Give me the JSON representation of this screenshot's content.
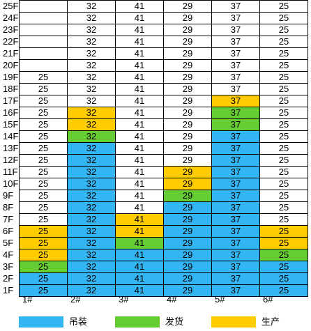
{
  "floors": [
    "25F",
    "24F",
    "23F",
    "22F",
    "21F",
    "20F",
    "19F",
    "18F",
    "17F",
    "16F",
    "15F",
    "14F",
    "13F",
    "12F",
    "11F",
    "10F",
    "9F",
    "8F",
    "7F",
    "6F",
    "5F",
    "4F",
    "3F",
    "2F",
    "1F"
  ],
  "columns": [
    "1#",
    "2#",
    "3#",
    "4#",
    "5#",
    "6#"
  ],
  "colors": {
    "lift": "#33b5f3",
    "ship": "#66cc33",
    "prod": "#ffcc00",
    "empty": "#ffffff"
  },
  "legend": [
    {
      "key": "lift",
      "label": "吊装",
      "color": "#33b5f3"
    },
    {
      "key": "ship",
      "label": "发货",
      "color": "#66cc33"
    },
    {
      "key": "prod",
      "label": "生产",
      "color": "#ffcc00"
    }
  ],
  "rows": [
    [
      [
        "",
        "n"
      ],
      [
        "32",
        "n"
      ],
      [
        "41",
        "n"
      ],
      [
        "29",
        "n"
      ],
      [
        "37",
        "n"
      ],
      [
        "25",
        "n"
      ]
    ],
    [
      [
        "",
        "n"
      ],
      [
        "32",
        "n"
      ],
      [
        "41",
        "n"
      ],
      [
        "29",
        "n"
      ],
      [
        "37",
        "n"
      ],
      [
        "25",
        "n"
      ]
    ],
    [
      [
        "",
        "n"
      ],
      [
        "32",
        "n"
      ],
      [
        "41",
        "n"
      ],
      [
        "29",
        "n"
      ],
      [
        "37",
        "n"
      ],
      [
        "25",
        "n"
      ]
    ],
    [
      [
        "",
        "n"
      ],
      [
        "32",
        "n"
      ],
      [
        "41",
        "n"
      ],
      [
        "29",
        "n"
      ],
      [
        "37",
        "n"
      ],
      [
        "25",
        "n"
      ]
    ],
    [
      [
        "",
        "n"
      ],
      [
        "32",
        "n"
      ],
      [
        "41",
        "n"
      ],
      [
        "29",
        "n"
      ],
      [
        "37",
        "n"
      ],
      [
        "25",
        "n"
      ]
    ],
    [
      [
        "",
        "n"
      ],
      [
        "32",
        "n"
      ],
      [
        "41",
        "n"
      ],
      [
        "29",
        "n"
      ],
      [
        "37",
        "n"
      ],
      [
        "25",
        "n"
      ]
    ],
    [
      [
        "25",
        "n"
      ],
      [
        "32",
        "n"
      ],
      [
        "41",
        "n"
      ],
      [
        "29",
        "n"
      ],
      [
        "37",
        "n"
      ],
      [
        "25",
        "n"
      ]
    ],
    [
      [
        "25",
        "n"
      ],
      [
        "32",
        "n"
      ],
      [
        "41",
        "n"
      ],
      [
        "29",
        "n"
      ],
      [
        "37",
        "n"
      ],
      [
        "25",
        "n"
      ]
    ],
    [
      [
        "25",
        "n"
      ],
      [
        "32",
        "n"
      ],
      [
        "41",
        "n"
      ],
      [
        "29",
        "n"
      ],
      [
        "37",
        "prod"
      ],
      [
        "25",
        "n"
      ]
    ],
    [
      [
        "25",
        "n"
      ],
      [
        "32",
        "prod"
      ],
      [
        "41",
        "n"
      ],
      [
        "29",
        "n"
      ],
      [
        "37",
        "ship"
      ],
      [
        "25",
        "n"
      ]
    ],
    [
      [
        "25",
        "n"
      ],
      [
        "32",
        "prod"
      ],
      [
        "41",
        "n"
      ],
      [
        "29",
        "n"
      ],
      [
        "37",
        "ship"
      ],
      [
        "25",
        "n"
      ]
    ],
    [
      [
        "25",
        "n"
      ],
      [
        "32",
        "ship"
      ],
      [
        "41",
        "n"
      ],
      [
        "29",
        "n"
      ],
      [
        "37",
        "lift"
      ],
      [
        "25",
        "n"
      ]
    ],
    [
      [
        "25",
        "n"
      ],
      [
        "32",
        "lift"
      ],
      [
        "41",
        "n"
      ],
      [
        "29",
        "n"
      ],
      [
        "37",
        "lift"
      ],
      [
        "25",
        "n"
      ]
    ],
    [
      [
        "25",
        "n"
      ],
      [
        "32",
        "lift"
      ],
      [
        "41",
        "n"
      ],
      [
        "29",
        "n"
      ],
      [
        "37",
        "lift"
      ],
      [
        "25",
        "n"
      ]
    ],
    [
      [
        "25",
        "n"
      ],
      [
        "32",
        "lift"
      ],
      [
        "41",
        "n"
      ],
      [
        "29",
        "prod"
      ],
      [
        "37",
        "lift"
      ],
      [
        "25",
        "n"
      ]
    ],
    [
      [
        "25",
        "n"
      ],
      [
        "32",
        "lift"
      ],
      [
        "41",
        "n"
      ],
      [
        "29",
        "prod"
      ],
      [
        "37",
        "lift"
      ],
      [
        "25",
        "n"
      ]
    ],
    [
      [
        "25",
        "n"
      ],
      [
        "32",
        "lift"
      ],
      [
        "41",
        "n"
      ],
      [
        "29",
        "ship"
      ],
      [
        "37",
        "lift"
      ],
      [
        "25",
        "n"
      ]
    ],
    [
      [
        "25",
        "n"
      ],
      [
        "32",
        "lift"
      ],
      [
        "41",
        "n"
      ],
      [
        "29",
        "lift"
      ],
      [
        "37",
        "lift"
      ],
      [
        "25",
        "n"
      ]
    ],
    [
      [
        "25",
        "n"
      ],
      [
        "32",
        "lift"
      ],
      [
        "41",
        "prod"
      ],
      [
        "29",
        "lift"
      ],
      [
        "37",
        "lift"
      ],
      [
        "25",
        "n"
      ]
    ],
    [
      [
        "25",
        "prod"
      ],
      [
        "32",
        "lift"
      ],
      [
        "41",
        "prod"
      ],
      [
        "29",
        "lift"
      ],
      [
        "37",
        "lift"
      ],
      [
        "25",
        "prod"
      ]
    ],
    [
      [
        "25",
        "prod"
      ],
      [
        "32",
        "lift"
      ],
      [
        "41",
        "ship"
      ],
      [
        "29",
        "lift"
      ],
      [
        "37",
        "lift"
      ],
      [
        "25",
        "prod"
      ]
    ],
    [
      [
        "25",
        "prod"
      ],
      [
        "32",
        "lift"
      ],
      [
        "41",
        "lift"
      ],
      [
        "29",
        "lift"
      ],
      [
        "37",
        "lift"
      ],
      [
        "25",
        "ship"
      ]
    ],
    [
      [
        "25",
        "ship"
      ],
      [
        "32",
        "lift"
      ],
      [
        "41",
        "lift"
      ],
      [
        "29",
        "lift"
      ],
      [
        "37",
        "lift"
      ],
      [
        "25",
        "lift"
      ]
    ],
    [
      [
        "25",
        "lift"
      ],
      [
        "32",
        "lift"
      ],
      [
        "41",
        "lift"
      ],
      [
        "29",
        "lift"
      ],
      [
        "37",
        "lift"
      ],
      [
        "25",
        "lift"
      ]
    ],
    [
      [
        "25",
        "lift"
      ],
      [
        "32",
        "lift"
      ],
      [
        "41",
        "lift"
      ],
      [
        "29",
        "lift"
      ],
      [
        "37",
        "lift"
      ],
      [
        "25",
        "lift"
      ]
    ]
  ]
}
